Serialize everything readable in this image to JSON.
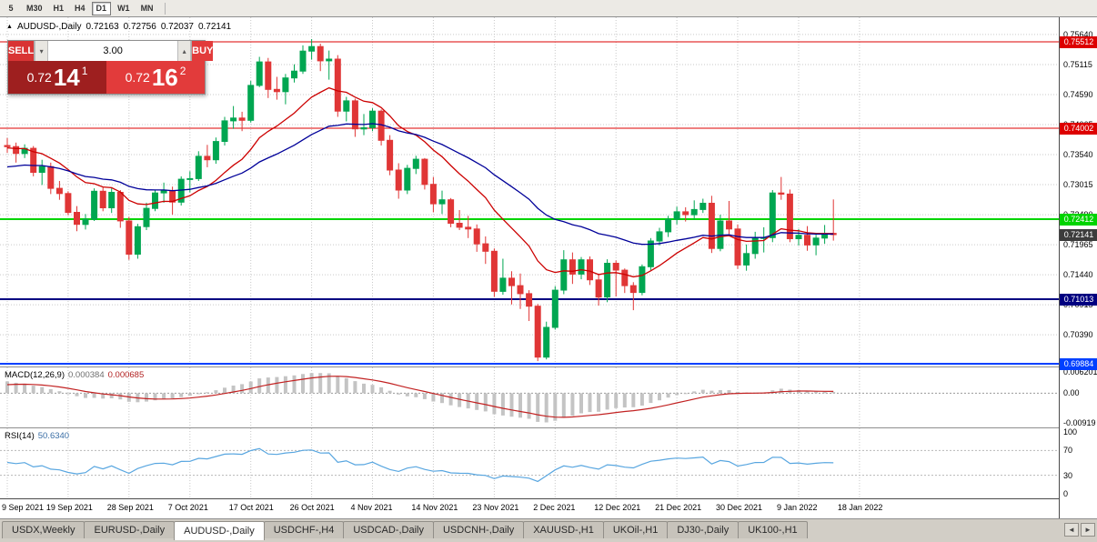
{
  "toolbar": {
    "timeframes": [
      "5",
      "M30",
      "H1",
      "H4",
      "D1",
      "W1",
      "MN"
    ],
    "active_timeframe": "D1"
  },
  "chart": {
    "collapse_icon": "▲",
    "title": "AUDUSD-,Daily",
    "open": "0.72163",
    "high": "0.72756",
    "low": "0.72037",
    "close": "0.72141"
  },
  "trade_panel": {
    "sell_label": "SELL",
    "buy_label": "BUY",
    "volume": "3.00",
    "spin_down_icon": "▾",
    "spin_up_icon": "▴",
    "sell_price": {
      "main": "0.72",
      "big": "14",
      "sup": "1"
    },
    "buy_price": {
      "main": "0.72",
      "big": "16",
      "sup": "2"
    }
  },
  "price_axis": {
    "labels": [
      "0.75640",
      "0.75115",
      "0.74590",
      "0.74065",
      "0.73540",
      "0.73015",
      "0.72490",
      "0.71965",
      "0.71440",
      "0.70915",
      "0.70390"
    ],
    "current_tag": {
      "label": "0.72141",
      "bg": "#3c3c3c",
      "fg": "#ffffff"
    }
  },
  "tabs": {
    "items": [
      "USDX,Weekly",
      "EURUSD-,Daily",
      "AUDUSD-,Daily",
      "USDCHF-,H4",
      "USDCAD-,Daily",
      "USDCNH-,Daily",
      "XAUUSD-,H1",
      "UKOil-,H1",
      "DJ30-,Daily",
      "UK100-,H1"
    ],
    "active_index": 2,
    "scroll_left_icon": "◄",
    "scroll_right_icon": "►"
  },
  "colors": {
    "bull": "#00a651",
    "bear": "#e03636",
    "grid": "#c9c9c9",
    "ma_fast": "#cc0000",
    "ma_slow": "#000099",
    "macd_hist": "#c4c4c4",
    "macd_signal": "#c22222",
    "rsi_line": "#58a6e0"
  },
  "chart_data": {
    "type": "candlestick",
    "symbol": "AUDUSD-",
    "timeframe": "Daily",
    "ylim": [
      0.696,
      0.758
    ],
    "bars_per_tick": 7,
    "tick_labels": [
      "9 Sep 2021",
      "19 Sep 2021",
      "28 Sep 2021",
      "7 Oct 2021",
      "17 Oct 2021",
      "26 Oct 2021",
      "4 Nov 2021",
      "14 Nov 2021",
      "23 Nov 2021",
      "2 Dec 2021",
      "12 Dec 2021",
      "21 Dec 2021",
      "30 Dec 2021",
      "9 Jan 2022",
      "18 Jan 2022"
    ],
    "pre_closes": [
      0.7361,
      0.7353,
      0.734,
      0.7322,
      0.7301,
      0.7285,
      0.7266,
      0.724,
      0.7223,
      0.7186,
      0.7161,
      0.7134,
      0.7113,
      0.7149,
      0.7177,
      0.7203,
      0.7242,
      0.7255,
      0.7292,
      0.731,
      0.7323,
      0.7343,
      0.7367,
      0.7389,
      0.741,
      0.7442,
      0.7453,
      0.7438,
      0.7405,
      0.7383
    ],
    "candles": [
      [
        0.737,
        0.7383,
        0.7357,
        0.7368
      ],
      [
        0.7368,
        0.7375,
        0.734,
        0.7356
      ],
      [
        0.7356,
        0.7372,
        0.7348,
        0.7365
      ],
      [
        0.7365,
        0.7369,
        0.7316,
        0.7323
      ],
      [
        0.7323,
        0.7345,
        0.7301,
        0.7333
      ],
      [
        0.7333,
        0.734,
        0.7285,
        0.7295
      ],
      [
        0.7295,
        0.7308,
        0.7275,
        0.7286
      ],
      [
        0.7286,
        0.729,
        0.7248,
        0.7253
      ],
      [
        0.7253,
        0.7264,
        0.722,
        0.7232
      ],
      [
        0.7232,
        0.725,
        0.7223,
        0.7241
      ],
      [
        0.7241,
        0.7295,
        0.7238,
        0.729
      ],
      [
        0.729,
        0.7297,
        0.7255,
        0.7261
      ],
      [
        0.7261,
        0.7295,
        0.7252,
        0.7288
      ],
      [
        0.7288,
        0.7292,
        0.7226,
        0.7238
      ],
      [
        0.7238,
        0.7245,
        0.717,
        0.718
      ],
      [
        0.718,
        0.7233,
        0.7172,
        0.7228
      ],
      [
        0.7228,
        0.727,
        0.7222,
        0.726
      ],
      [
        0.726,
        0.7292,
        0.7255,
        0.7287
      ],
      [
        0.7287,
        0.7305,
        0.727,
        0.7291
      ],
      [
        0.7291,
        0.7298,
        0.7249,
        0.7271
      ],
      [
        0.7271,
        0.7316,
        0.7265,
        0.7311
      ],
      [
        0.7311,
        0.7325,
        0.7288,
        0.7312
      ],
      [
        0.7312,
        0.736,
        0.7308,
        0.7351
      ],
      [
        0.7351,
        0.7371,
        0.7332,
        0.7345
      ],
      [
        0.7345,
        0.7384,
        0.7338,
        0.7377
      ],
      [
        0.7377,
        0.742,
        0.737,
        0.7413
      ],
      [
        0.7413,
        0.7439,
        0.7399,
        0.7418
      ],
      [
        0.7418,
        0.7429,
        0.7395,
        0.7414
      ],
      [
        0.7414,
        0.7483,
        0.741,
        0.7475
      ],
      [
        0.7475,
        0.7525,
        0.7472,
        0.7516
      ],
      [
        0.7516,
        0.7523,
        0.7453,
        0.7468
      ],
      [
        0.7468,
        0.749,
        0.745,
        0.7464
      ],
      [
        0.7464,
        0.7495,
        0.7442,
        0.7488
      ],
      [
        0.7488,
        0.7512,
        0.748,
        0.75
      ],
      [
        0.75,
        0.7545,
        0.7495,
        0.7535
      ],
      [
        0.7535,
        0.7556,
        0.752,
        0.7543
      ],
      [
        0.7543,
        0.7548,
        0.75,
        0.7518
      ],
      [
        0.7518,
        0.7536,
        0.7485,
        0.7521
      ],
      [
        0.7521,
        0.7528,
        0.742,
        0.743
      ],
      [
        0.743,
        0.7455,
        0.7412,
        0.7448
      ],
      [
        0.7448,
        0.7452,
        0.7385,
        0.7399
      ],
      [
        0.7399,
        0.7425,
        0.7388,
        0.7401
      ],
      [
        0.7401,
        0.7435,
        0.7395,
        0.743
      ],
      [
        0.743,
        0.7433,
        0.737,
        0.7379
      ],
      [
        0.7379,
        0.7388,
        0.7318,
        0.7327
      ],
      [
        0.7327,
        0.7339,
        0.7277,
        0.7292
      ],
      [
        0.7292,
        0.7336,
        0.7285,
        0.733
      ],
      [
        0.733,
        0.7352,
        0.732,
        0.7346
      ],
      [
        0.7346,
        0.7348,
        0.7293,
        0.7302
      ],
      [
        0.7302,
        0.7315,
        0.7253,
        0.7268
      ],
      [
        0.7268,
        0.7291,
        0.725,
        0.7275
      ],
      [
        0.7275,
        0.7278,
        0.7227,
        0.7234
      ],
      [
        0.7234,
        0.7257,
        0.7222,
        0.7227
      ],
      [
        0.7227,
        0.7247,
        0.7208,
        0.7224
      ],
      [
        0.7224,
        0.7232,
        0.7184,
        0.7198
      ],
      [
        0.7198,
        0.7211,
        0.7163,
        0.7185
      ],
      [
        0.7185,
        0.719,
        0.7105,
        0.7115
      ],
      [
        0.7115,
        0.7172,
        0.7109,
        0.7138
      ],
      [
        0.7138,
        0.715,
        0.7092,
        0.7125
      ],
      [
        0.7125,
        0.7146,
        0.7084,
        0.7111
      ],
      [
        0.7111,
        0.7117,
        0.7063,
        0.7089
      ],
      [
        0.7089,
        0.7093,
        0.6993,
        0.7
      ],
      [
        0.7,
        0.7062,
        0.6996,
        0.7052
      ],
      [
        0.7052,
        0.7124,
        0.7048,
        0.7117
      ],
      [
        0.7117,
        0.7187,
        0.711,
        0.717
      ],
      [
        0.717,
        0.7183,
        0.7128,
        0.7145
      ],
      [
        0.7145,
        0.7175,
        0.7136,
        0.717
      ],
      [
        0.717,
        0.7176,
        0.7126,
        0.7135
      ],
      [
        0.7135,
        0.7146,
        0.709,
        0.7105
      ],
      [
        0.7105,
        0.7171,
        0.7096,
        0.7164
      ],
      [
        0.7164,
        0.7169,
        0.7106,
        0.7152
      ],
      [
        0.7152,
        0.7155,
        0.7112,
        0.7125
      ],
      [
        0.7125,
        0.7131,
        0.7082,
        0.7113
      ],
      [
        0.7113,
        0.7162,
        0.7108,
        0.7158
      ],
      [
        0.7158,
        0.7208,
        0.7152,
        0.7203
      ],
      [
        0.7203,
        0.7226,
        0.7195,
        0.7219
      ],
      [
        0.7219,
        0.7247,
        0.721,
        0.7241
      ],
      [
        0.7241,
        0.7263,
        0.7232,
        0.7254
      ],
      [
        0.7254,
        0.7262,
        0.7237,
        0.7249
      ],
      [
        0.7249,
        0.7274,
        0.724,
        0.7258
      ],
      [
        0.7258,
        0.7277,
        0.7252,
        0.7269
      ],
      [
        0.7269,
        0.7282,
        0.7182,
        0.719
      ],
      [
        0.719,
        0.7249,
        0.7185,
        0.7238
      ],
      [
        0.7238,
        0.7273,
        0.7215,
        0.7224
      ],
      [
        0.7224,
        0.7232,
        0.7154,
        0.7161
      ],
      [
        0.7161,
        0.7197,
        0.7151,
        0.7181
      ],
      [
        0.7181,
        0.7219,
        0.7172,
        0.7208
      ],
      [
        0.7208,
        0.7227,
        0.7183,
        0.7209
      ],
      [
        0.7209,
        0.7292,
        0.7201,
        0.7287
      ],
      [
        0.7287,
        0.7315,
        0.7275,
        0.7285
      ],
      [
        0.7285,
        0.7293,
        0.7201,
        0.7207
      ],
      [
        0.7207,
        0.7224,
        0.7195,
        0.7213
      ],
      [
        0.7213,
        0.7229,
        0.7186,
        0.7196
      ],
      [
        0.7196,
        0.7214,
        0.7178,
        0.7208
      ],
      [
        0.7208,
        0.7231,
        0.7198,
        0.7216
      ],
      [
        0.72163,
        0.72756,
        0.72037,
        0.72141
      ]
    ],
    "hlines": [
      {
        "price": 0.75512,
        "label": "0.75512",
        "color": "#dd0000",
        "width": 1
      },
      {
        "price": 0.74002,
        "label": "0.74002",
        "color": "#dd0000",
        "width": 1
      },
      {
        "price": 0.72412,
        "label": "0.72412",
        "color": "#00d400",
        "width": 2
      },
      {
        "price": 0.71013,
        "label": "0.71013",
        "color": "#000080",
        "width": 2
      },
      {
        "price": 0.69884,
        "label": "0.69884",
        "color": "#0040ff",
        "width": 2
      }
    ],
    "overlays": [
      {
        "name": "ma-fast",
        "type": "ema",
        "period": 14
      },
      {
        "name": "ma-slow",
        "type": "ema",
        "period": 34
      }
    ],
    "indicators": {
      "macd": {
        "name": "MACD(12,26,9)",
        "main_value": "0.000384",
        "signal_value": "0.000685",
        "fast": 12,
        "slow": 26,
        "signal": 9,
        "axis_top": "0.006201",
        "axis_zero": "0.00",
        "axis_bottom": "-0.00919"
      },
      "rsi": {
        "name": "RSI(14)",
        "value": "50.6340",
        "period": 14,
        "axis": [
          "100",
          "70",
          "30",
          "0"
        ],
        "levels": [
          70,
          30
        ]
      }
    }
  }
}
